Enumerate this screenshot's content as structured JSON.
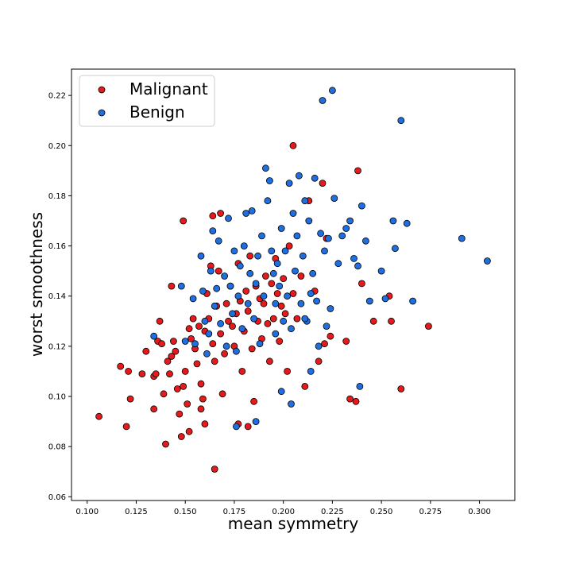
{
  "chart_data": {
    "type": "scatter",
    "xlabel": "mean symmetry",
    "ylabel": "worst smoothness",
    "xlim": [
      0.092,
      0.318
    ],
    "ylim": [
      0.0585,
      0.2305
    ],
    "xticks": [
      0.1,
      0.125,
      0.15,
      0.175,
      0.2,
      0.225,
      0.25,
      0.275,
      0.3
    ],
    "xtick_labels": [
      "0.100",
      "0.125",
      "0.150",
      "0.175",
      "0.200",
      "0.225",
      "0.250",
      "0.275",
      "0.300"
    ],
    "yticks": [
      0.06,
      0.08,
      0.1,
      0.12,
      0.14,
      0.16,
      0.18,
      0.2,
      0.22
    ],
    "ytick_labels": [
      "0.06",
      "0.08",
      "0.10",
      "0.12",
      "0.14",
      "0.16",
      "0.18",
      "0.20",
      "0.22"
    ],
    "grid": false,
    "legend_position": "top-left",
    "series": [
      {
        "name": "Malignant",
        "color": "#e41a1c",
        "points": [
          [
            0.106,
            0.092
          ],
          [
            0.117,
            0.112
          ],
          [
            0.121,
            0.11
          ],
          [
            0.122,
            0.099
          ],
          [
            0.12,
            0.088
          ],
          [
            0.128,
            0.109
          ],
          [
            0.13,
            0.118
          ],
          [
            0.134,
            0.108
          ],
          [
            0.135,
            0.109
          ],
          [
            0.134,
            0.095
          ],
          [
            0.136,
            0.122
          ],
          [
            0.137,
            0.13
          ],
          [
            0.138,
            0.121
          ],
          [
            0.139,
            0.101
          ],
          [
            0.141,
            0.114
          ],
          [
            0.142,
            0.109
          ],
          [
            0.143,
            0.116
          ],
          [
            0.144,
            0.122
          ],
          [
            0.145,
            0.118
          ],
          [
            0.146,
            0.103
          ],
          [
            0.147,
            0.093
          ],
          [
            0.148,
            0.084
          ],
          [
            0.149,
            0.104
          ],
          [
            0.15,
            0.11
          ],
          [
            0.151,
            0.097
          ],
          [
            0.152,
            0.127
          ],
          [
            0.153,
            0.123
          ],
          [
            0.154,
            0.131
          ],
          [
            0.155,
            0.119
          ],
          [
            0.156,
            0.113
          ],
          [
            0.157,
            0.128
          ],
          [
            0.158,
            0.105
          ],
          [
            0.159,
            0.099
          ],
          [
            0.16,
            0.089
          ],
          [
            0.16,
            0.126
          ],
          [
            0.161,
            0.141
          ],
          [
            0.162,
            0.131
          ],
          [
            0.163,
            0.152
          ],
          [
            0.164,
            0.121
          ],
          [
            0.165,
            0.114
          ],
          [
            0.166,
            0.136
          ],
          [
            0.167,
            0.15
          ],
          [
            0.168,
            0.125
          ],
          [
            0.169,
            0.101
          ],
          [
            0.17,
            0.117
          ],
          [
            0.171,
            0.137
          ],
          [
            0.172,
            0.13
          ],
          [
            0.173,
            0.144
          ],
          [
            0.174,
            0.128
          ],
          [
            0.175,
            0.12
          ],
          [
            0.176,
            0.133
          ],
          [
            0.177,
            0.153
          ],
          [
            0.178,
            0.138
          ],
          [
            0.179,
            0.11
          ],
          [
            0.18,
            0.126
          ],
          [
            0.181,
            0.142
          ],
          [
            0.182,
            0.134
          ],
          [
            0.183,
            0.156
          ],
          [
            0.184,
            0.119
          ],
          [
            0.185,
            0.098
          ],
          [
            0.186,
            0.144
          ],
          [
            0.187,
            0.13
          ],
          [
            0.188,
            0.139
          ],
          [
            0.189,
            0.123
          ],
          [
            0.19,
            0.137
          ],
          [
            0.191,
            0.148
          ],
          [
            0.192,
            0.129
          ],
          [
            0.193,
            0.114
          ],
          [
            0.194,
            0.145
          ],
          [
            0.195,
            0.131
          ],
          [
            0.196,
            0.155
          ],
          [
            0.197,
            0.141
          ],
          [
            0.198,
            0.122
          ],
          [
            0.199,
            0.136
          ],
          [
            0.2,
            0.147
          ],
          [
            0.201,
            0.133
          ],
          [
            0.202,
            0.11
          ],
          [
            0.203,
            0.16
          ],
          [
            0.205,
            0.141
          ],
          [
            0.207,
            0.131
          ],
          [
            0.209,
            0.148
          ],
          [
            0.211,
            0.104
          ],
          [
            0.213,
            0.178
          ],
          [
            0.216,
            0.142
          ],
          [
            0.218,
            0.114
          ],
          [
            0.22,
            0.185
          ],
          [
            0.221,
            0.121
          ],
          [
            0.222,
            0.163
          ],
          [
            0.224,
            0.124
          ],
          [
            0.232,
            0.122
          ],
          [
            0.234,
            0.099
          ],
          [
            0.237,
            0.098
          ],
          [
            0.238,
            0.19
          ],
          [
            0.24,
            0.145
          ],
          [
            0.246,
            0.13
          ],
          [
            0.254,
            0.14
          ],
          [
            0.255,
            0.13
          ],
          [
            0.26,
            0.103
          ],
          [
            0.274,
            0.128
          ],
          [
            0.165,
            0.071
          ],
          [
            0.149,
            0.17
          ],
          [
            0.164,
            0.172
          ],
          [
            0.168,
            0.173
          ],
          [
            0.205,
            0.2
          ],
          [
            0.14,
            0.081
          ],
          [
            0.143,
            0.144
          ],
          [
            0.152,
            0.086
          ],
          [
            0.158,
            0.095
          ],
          [
            0.177,
            0.089
          ],
          [
            0.182,
            0.088
          ]
        ]
      },
      {
        "name": "Benign",
        "color": "#1f6fe0",
        "points": [
          [
            0.134,
            0.124
          ],
          [
            0.148,
            0.144
          ],
          [
            0.15,
            0.122
          ],
          [
            0.154,
            0.139
          ],
          [
            0.155,
            0.121
          ],
          [
            0.158,
            0.156
          ],
          [
            0.159,
            0.142
          ],
          [
            0.16,
            0.13
          ],
          [
            0.161,
            0.117
          ],
          [
            0.162,
            0.125
          ],
          [
            0.163,
            0.15
          ],
          [
            0.164,
            0.166
          ],
          [
            0.165,
            0.136
          ],
          [
            0.166,
            0.143
          ],
          [
            0.167,
            0.162
          ],
          [
            0.168,
            0.129
          ],
          [
            0.17,
            0.148
          ],
          [
            0.171,
            0.12
          ],
          [
            0.172,
            0.171
          ],
          [
            0.173,
            0.144
          ],
          [
            0.174,
            0.133
          ],
          [
            0.175,
            0.158
          ],
          [
            0.176,
            0.118
          ],
          [
            0.177,
            0.14
          ],
          [
            0.178,
            0.152
          ],
          [
            0.179,
            0.127
          ],
          [
            0.18,
            0.16
          ],
          [
            0.181,
            0.173
          ],
          [
            0.182,
            0.137
          ],
          [
            0.183,
            0.149
          ],
          [
            0.184,
            0.174
          ],
          [
            0.185,
            0.131
          ],
          [
            0.186,
            0.145
          ],
          [
            0.187,
            0.156
          ],
          [
            0.188,
            0.121
          ],
          [
            0.189,
            0.164
          ],
          [
            0.19,
            0.14
          ],
          [
            0.191,
            0.191
          ],
          [
            0.192,
            0.178
          ],
          [
            0.193,
            0.186
          ],
          [
            0.194,
            0.158
          ],
          [
            0.195,
            0.149
          ],
          [
            0.196,
            0.137
          ],
          [
            0.197,
            0.153
          ],
          [
            0.198,
            0.144
          ],
          [
            0.199,
            0.167
          ],
          [
            0.2,
            0.13
          ],
          [
            0.201,
            0.158
          ],
          [
            0.202,
            0.14
          ],
          [
            0.203,
            0.185
          ],
          [
            0.204,
            0.127
          ],
          [
            0.205,
            0.173
          ],
          [
            0.206,
            0.15
          ],
          [
            0.207,
            0.164
          ],
          [
            0.208,
            0.188
          ],
          [
            0.209,
            0.137
          ],
          [
            0.21,
            0.156
          ],
          [
            0.211,
            0.178
          ],
          [
            0.212,
            0.13
          ],
          [
            0.213,
            0.17
          ],
          [
            0.214,
            0.141
          ],
          [
            0.215,
            0.149
          ],
          [
            0.216,
            0.187
          ],
          [
            0.217,
            0.138
          ],
          [
            0.218,
            0.12
          ],
          [
            0.219,
            0.165
          ],
          [
            0.22,
            0.218
          ],
          [
            0.221,
            0.158
          ],
          [
            0.222,
            0.128
          ],
          [
            0.223,
            0.163
          ],
          [
            0.224,
            0.135
          ],
          [
            0.225,
            0.222
          ],
          [
            0.226,
            0.179
          ],
          [
            0.228,
            0.153
          ],
          [
            0.23,
            0.164
          ],
          [
            0.232,
            0.167
          ],
          [
            0.234,
            0.17
          ],
          [
            0.236,
            0.155
          ],
          [
            0.238,
            0.152
          ],
          [
            0.239,
            0.104
          ],
          [
            0.24,
            0.176
          ],
          [
            0.242,
            0.162
          ],
          [
            0.244,
            0.138
          ],
          [
            0.25,
            0.15
          ],
          [
            0.252,
            0.139
          ],
          [
            0.256,
            0.17
          ],
          [
            0.257,
            0.159
          ],
          [
            0.26,
            0.21
          ],
          [
            0.263,
            0.169
          ],
          [
            0.266,
            0.138
          ],
          [
            0.291,
            0.163
          ],
          [
            0.304,
            0.154
          ],
          [
            0.176,
            0.088
          ],
          [
            0.186,
            0.09
          ],
          [
            0.199,
            0.102
          ],
          [
            0.214,
            0.11
          ],
          [
            0.211,
            0.131
          ],
          [
            0.196,
            0.125
          ],
          [
            0.204,
            0.097
          ]
        ]
      }
    ]
  }
}
